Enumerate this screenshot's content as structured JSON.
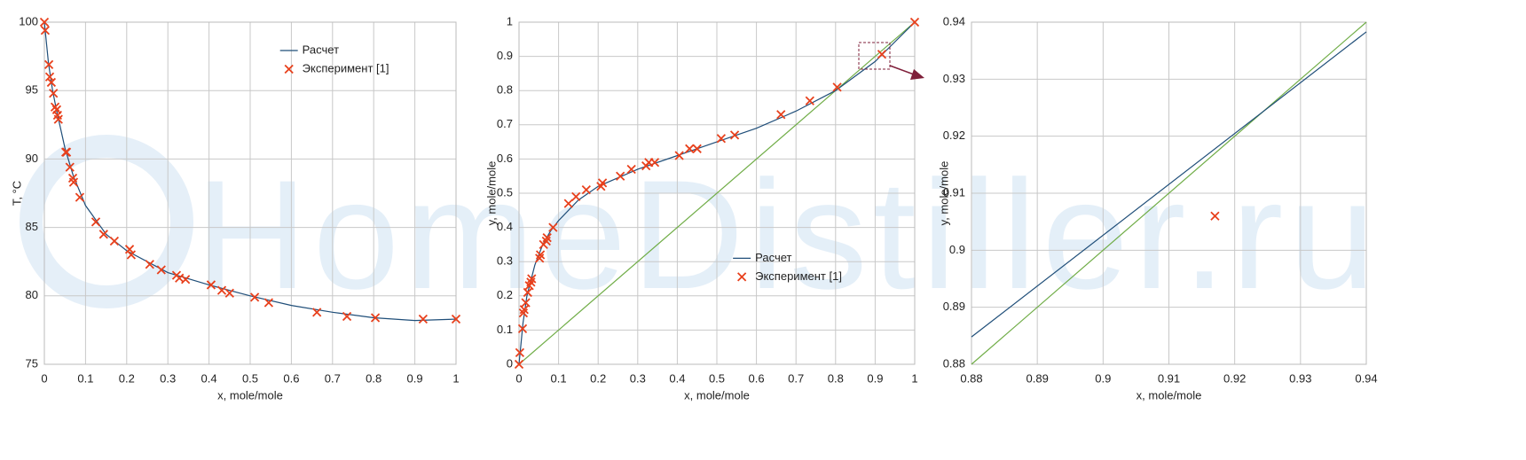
{
  "watermark": "HomeDistiller.ru",
  "chart_data": [
    {
      "type": "scatter",
      "xlabel": "x, mole/mole",
      "ylabel": "T, °C",
      "legend": "upper right",
      "grid": true,
      "xlim": [
        0,
        1
      ],
      "ylim": [
        75,
        100
      ],
      "xticks": [
        0,
        0.1,
        0.2,
        0.3,
        0.4,
        0.5,
        0.6,
        0.7,
        0.8,
        0.9,
        1
      ],
      "yticks": [
        75,
        80,
        85,
        90,
        95,
        100
      ],
      "series": [
        {
          "name": "Расчет",
          "color": "#1f4e79",
          "style": "line",
          "x": [
            0,
            0.01,
            0.02,
            0.03,
            0.05,
            0.07,
            0.1,
            0.15,
            0.2,
            0.3,
            0.4,
            0.5,
            0.6,
            0.7,
            0.8,
            0.9,
            1
          ],
          "values": [
            100,
            97.0,
            95.0,
            93.5,
            90.8,
            88.8,
            86.6,
            84.5,
            83.3,
            81.7,
            80.8,
            80.0,
            79.3,
            78.8,
            78.4,
            78.2,
            78.3
          ]
        },
        {
          "name": "Эксперимент [1]",
          "color": "#e8401c",
          "style": "x",
          "x": [
            0,
            0.002,
            0.011,
            0.013,
            0.017,
            0.022,
            0.026,
            0.03,
            0.032,
            0.034,
            0.052,
            0.054,
            0.062,
            0.069,
            0.071,
            0.086,
            0.125,
            0.144,
            0.17,
            0.207,
            0.211,
            0.256,
            0.284,
            0.321,
            0.328,
            0.343,
            0.405,
            0.431,
            0.45,
            0.511,
            0.545,
            0.662,
            0.735,
            0.804,
            0.92,
            1
          ],
          "values": [
            100,
            99.4,
            96.9,
            96.0,
            95.6,
            94.8,
            93.8,
            93.6,
            93.2,
            92.9,
            90.5,
            90.5,
            89.4,
            88.6,
            88.3,
            87.2,
            85.4,
            84.5,
            84.0,
            83.4,
            83.0,
            82.3,
            81.9,
            81.5,
            81.3,
            81.2,
            80.8,
            80.4,
            80.2,
            79.9,
            79.5,
            78.8,
            78.5,
            78.4,
            78.3,
            78.3
          ]
        }
      ]
    },
    {
      "type": "scatter",
      "xlabel": "x, mole/mole",
      "ylabel": "y, mole/mole",
      "legend": "center",
      "grid": true,
      "xlim": [
        0,
        1
      ],
      "ylim": [
        0,
        1
      ],
      "xticks": [
        0,
        0.1,
        0.2,
        0.3,
        0.4,
        0.5,
        0.6,
        0.7,
        0.8,
        0.9,
        1
      ],
      "yticks": [
        0,
        0.1,
        0.2,
        0.3,
        0.4,
        0.5,
        0.6,
        0.7,
        0.8,
        0.9,
        1
      ],
      "series": [
        {
          "color": "#70ad47",
          "style": "line",
          "x": [
            0,
            1
          ],
          "values": [
            0,
            1
          ]
        },
        {
          "name": "Расчет",
          "color": "#1f4e79",
          "style": "line",
          "x": [
            0,
            0.01,
            0.02,
            0.04,
            0.06,
            0.08,
            0.1,
            0.15,
            0.2,
            0.3,
            0.4,
            0.5,
            0.6,
            0.7,
            0.8,
            0.9,
            1
          ],
          "values": [
            0,
            0.12,
            0.2,
            0.29,
            0.35,
            0.39,
            0.42,
            0.48,
            0.52,
            0.57,
            0.61,
            0.65,
            0.69,
            0.74,
            0.8,
            0.885,
            1
          ]
        },
        {
          "name": "Эксперимент [1]",
          "color": "#e8401c",
          "style": "x",
          "x": [
            0,
            0.002,
            0.009,
            0.011,
            0.013,
            0.017,
            0.022,
            0.026,
            0.03,
            0.032,
            0.052,
            0.054,
            0.062,
            0.069,
            0.071,
            0.086,
            0.125,
            0.144,
            0.17,
            0.207,
            0.211,
            0.256,
            0.284,
            0.321,
            0.328,
            0.343,
            0.405,
            0.431,
            0.45,
            0.511,
            0.545,
            0.662,
            0.735,
            0.804,
            0.917,
            1
          ],
          "values": [
            0,
            0.034,
            0.104,
            0.15,
            0.16,
            0.18,
            0.21,
            0.23,
            0.24,
            0.25,
            0.31,
            0.32,
            0.35,
            0.36,
            0.37,
            0.4,
            0.47,
            0.49,
            0.51,
            0.52,
            0.53,
            0.55,
            0.57,
            0.58,
            0.59,
            0.59,
            0.61,
            0.63,
            0.63,
            0.66,
            0.67,
            0.73,
            0.77,
            0.81,
            0.906,
            1
          ]
        }
      ]
    },
    {
      "type": "scatter",
      "xlabel": "x, mole/mole",
      "ylabel": "y, mole/mole",
      "grid": true,
      "xlim": [
        0.88,
        0.94
      ],
      "ylim": [
        0.88,
        0.94
      ],
      "xticks": [
        0.88,
        0.89,
        0.9,
        0.91,
        0.92,
        0.93,
        0.94
      ],
      "yticks": [
        0.88,
        0.89,
        0.9,
        0.91,
        0.92,
        0.93,
        0.94
      ],
      "series": [
        {
          "color": "#70ad47",
          "style": "line",
          "x": [
            0.88,
            0.94
          ],
          "values": [
            0.88,
            0.94
          ]
        },
        {
          "color": "#1f4e79",
          "style": "line",
          "x": [
            0.88,
            0.94
          ],
          "values": [
            0.8848,
            0.9383
          ]
        },
        {
          "color": "#e8401c",
          "style": "x",
          "x": [
            0.917
          ],
          "values": [
            0.906
          ]
        }
      ]
    }
  ]
}
